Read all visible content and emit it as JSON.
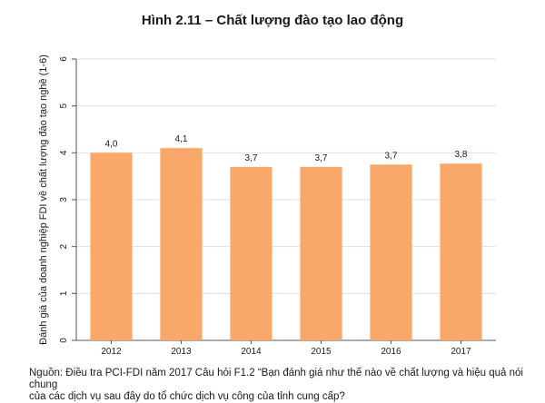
{
  "title": "Hình 2.11 – Chất lượng đào tạo lao động",
  "chart_data": {
    "type": "bar",
    "categories": [
      "2012",
      "2013",
      "2014",
      "2015",
      "2016",
      "2017"
    ],
    "values": [
      4.0,
      4.1,
      3.7,
      3.7,
      3.75,
      3.77
    ],
    "value_labels": [
      "4,0",
      "4,1",
      "3,7",
      "3,7",
      "3,7",
      "3,8"
    ],
    "ylabel": "Đánh giá của doanh nghiệp FDI về chất lượng đào tạo nghề (1-6)",
    "xlabel": "",
    "ylim": [
      0,
      6
    ],
    "yticks": [
      0,
      1,
      2,
      3,
      4,
      5,
      6
    ],
    "grid": true,
    "bar_color": "#f9a86a"
  },
  "note": {
    "line1": "Nguồn: Điều tra PCI-FDI năm 2017 Câu hỏi F1.2 “Bạn đánh giá như thế nào về chất lượng và hiệu quả nói chung",
    "line2": "của các dịch vụ sau đây do tổ chức dịch vụ công của tỉnh cung cấp?"
  }
}
